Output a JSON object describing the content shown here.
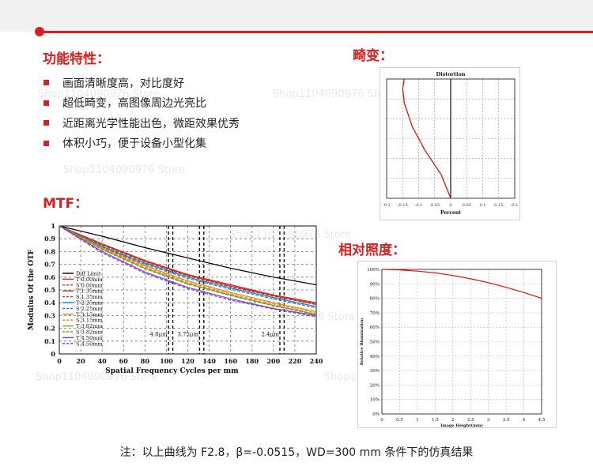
{
  "header": {
    "accent_color": "#d81e1e"
  },
  "features": {
    "title": "功能特性：",
    "items": [
      "画面清晰度高，对比度好",
      "超低畸变，高图像周边光亮比",
      "近距离光学性能出色，微距效果优秀",
      "体积小巧，便于设备小型化集"
    ]
  },
  "sections": {
    "mtf_title": "MTF：",
    "distortion_title": "畸变：",
    "illumination_title": "相对照度："
  },
  "watermark": "Shop1104090976 Store",
  "note": "注：以上曲线为 F2.8，β=-0.0515，WD=300 mm 条件下的仿真结果",
  "chart_data": [
    {
      "type": "line",
      "id": "mtf",
      "xlabel": "Spatial Frequency Cycles per mm",
      "ylabel": "Modulus Of the OTF",
      "xlim": [
        0,
        240
      ],
      "ylim": [
        0,
        1
      ],
      "x_ticks": [
        0,
        20,
        40,
        60,
        80,
        100,
        120,
        140,
        160,
        180,
        200,
        220,
        240
      ],
      "y_ticks": [
        0,
        0.1,
        0.2,
        0.3,
        0.4,
        0.5,
        0.6,
        0.7,
        0.8,
        0.9,
        1
      ],
      "legend_position": "left",
      "annotations": [
        {
          "text": "4.8μm",
          "x": 104
        },
        {
          "text": "3.75μm",
          "x": 133
        },
        {
          "text": "2.4μm",
          "x": 208
        }
      ],
      "grid": true,
      "series": [
        {
          "name": "Diff Limit",
          "color": "#000000",
          "dash": false,
          "points": [
            [
              0,
              1
            ],
            [
              40,
              0.92
            ],
            [
              80,
              0.83
            ],
            [
              120,
              0.75
            ],
            [
              160,
              0.67
            ],
            [
              200,
              0.6
            ],
            [
              240,
              0.54
            ]
          ]
        },
        {
          "name": "T 0.00mm",
          "color": "#d62728",
          "dash": false,
          "points": [
            [
              0,
              1
            ],
            [
              40,
              0.86
            ],
            [
              80,
              0.73
            ],
            [
              120,
              0.62
            ],
            [
              160,
              0.54
            ],
            [
              200,
              0.46
            ],
            [
              240,
              0.4
            ]
          ]
        },
        {
          "name": "S 0.00mm",
          "color": "#d62728",
          "dash": true,
          "points": [
            [
              0,
              1
            ],
            [
              40,
              0.86
            ],
            [
              80,
              0.73
            ],
            [
              120,
              0.62
            ],
            [
              160,
              0.54
            ],
            [
              200,
              0.46
            ],
            [
              240,
              0.4
            ]
          ]
        },
        {
          "name": "T 1.35mm",
          "color": "#c0392b",
          "dash": false,
          "points": [
            [
              0,
              1
            ],
            [
              40,
              0.855
            ],
            [
              80,
              0.725
            ],
            [
              120,
              0.615
            ],
            [
              160,
              0.53
            ],
            [
              200,
              0.455
            ],
            [
              240,
              0.39
            ]
          ]
        },
        {
          "name": "S 1.35mm",
          "color": "#c0392b",
          "dash": true,
          "points": [
            [
              0,
              1
            ],
            [
              40,
              0.85
            ],
            [
              80,
              0.72
            ],
            [
              120,
              0.61
            ],
            [
              160,
              0.525
            ],
            [
              200,
              0.45
            ],
            [
              240,
              0.385
            ]
          ]
        },
        {
          "name": "T 2.25mm",
          "color": "#1f77b4",
          "dash": false,
          "points": [
            [
              0,
              1
            ],
            [
              40,
              0.84
            ],
            [
              80,
              0.71
            ],
            [
              120,
              0.6
            ],
            [
              160,
              0.515
            ],
            [
              200,
              0.44
            ],
            [
              240,
              0.37
            ]
          ]
        },
        {
          "name": "S 2.25mm",
          "color": "#1f77b4",
          "dash": true,
          "points": [
            [
              0,
              1
            ],
            [
              40,
              0.835
            ],
            [
              80,
              0.7
            ],
            [
              120,
              0.59
            ],
            [
              160,
              0.505
            ],
            [
              200,
              0.43
            ],
            [
              240,
              0.36
            ]
          ]
        },
        {
          "name": "T 3.15mm",
          "color": "#ff7f0e",
          "dash": false,
          "points": [
            [
              0,
              1
            ],
            [
              40,
              0.83
            ],
            [
              80,
              0.69
            ],
            [
              120,
              0.57
            ],
            [
              160,
              0.48
            ],
            [
              200,
              0.4
            ],
            [
              240,
              0.33
            ]
          ]
        },
        {
          "name": "S 3.15mm",
          "color": "#ff7f0e",
          "dash": true,
          "points": [
            [
              0,
              1
            ],
            [
              40,
              0.825
            ],
            [
              80,
              0.68
            ],
            [
              120,
              0.56
            ],
            [
              160,
              0.47
            ],
            [
              200,
              0.39
            ],
            [
              240,
              0.32
            ]
          ]
        },
        {
          "name": "T 3.82mm",
          "color": "#7f9c2a",
          "dash": false,
          "points": [
            [
              0,
              1
            ],
            [
              40,
              0.82
            ],
            [
              80,
              0.67
            ],
            [
              120,
              0.55
            ],
            [
              160,
              0.46
            ],
            [
              200,
              0.38
            ],
            [
              240,
              0.31
            ]
          ]
        },
        {
          "name": "S 3.82mm",
          "color": "#7f9c2a",
          "dash": true,
          "points": [
            [
              0,
              1
            ],
            [
              40,
              0.815
            ],
            [
              80,
              0.665
            ],
            [
              120,
              0.545
            ],
            [
              160,
              0.455
            ],
            [
              200,
              0.375
            ],
            [
              240,
              0.305
            ]
          ]
        },
        {
          "name": "T 4.50mm",
          "color": "#7b3fc0",
          "dash": false,
          "points": [
            [
              0,
              1
            ],
            [
              40,
              0.8
            ],
            [
              80,
              0.64
            ],
            [
              120,
              0.52
            ],
            [
              160,
              0.43
            ],
            [
              200,
              0.355
            ],
            [
              240,
              0.3
            ]
          ]
        },
        {
          "name": "S 4.50mm",
          "color": "#7b3fc0",
          "dash": true,
          "points": [
            [
              0,
              1
            ],
            [
              40,
              0.79
            ],
            [
              80,
              0.63
            ],
            [
              120,
              0.51
            ],
            [
              160,
              0.42
            ],
            [
              200,
              0.35
            ],
            [
              240,
              0.29
            ]
          ]
        }
      ]
    },
    {
      "type": "line",
      "id": "distortion",
      "title": "Distortion",
      "xlabel": "Percent",
      "xlim": [
        -0.2,
        0.2
      ],
      "ylim": [
        0,
        1
      ],
      "x_ticks": [
        -0.2,
        -0.15,
        -0.1,
        -0.05,
        0,
        0.05,
        0.1,
        0.15,
        0.2
      ],
      "grid": true,
      "series": [
        {
          "name": "",
          "color": "#e01010",
          "points": [
            [
              0,
              0
            ],
            [
              -0.03,
              0.2
            ],
            [
              -0.08,
              0.4
            ],
            [
              -0.12,
              0.6
            ],
            [
              -0.145,
              0.8
            ],
            [
              -0.15,
              0.92
            ],
            [
              -0.145,
              1
            ]
          ]
        }
      ]
    },
    {
      "type": "line",
      "id": "relative_illumination",
      "xlabel": "Image Height(mm)",
      "ylabel": "Relative Illumination",
      "xlim": [
        0,
        4.5
      ],
      "ylim": [
        0,
        100
      ],
      "x_ticks": [
        "0",
        "0.5",
        "1",
        "1.5",
        "2",
        "2.5",
        "3",
        "3.5",
        "4",
        "4.5"
      ],
      "y_ticks": [
        "0%",
        "10%",
        "20%",
        "30%",
        "40%",
        "50%",
        "60%",
        "70%",
        "80%",
        "90%",
        "100%"
      ],
      "grid": true,
      "series": [
        {
          "name": "",
          "color": "#e01010",
          "points": [
            [
              0,
              100
            ],
            [
              0.5,
              99.6
            ],
            [
              1,
              98.8
            ],
            [
              1.5,
              97.6
            ],
            [
              2,
              95.8
            ],
            [
              2.5,
              93.5
            ],
            [
              3,
              90.8
            ],
            [
              3.5,
              87.6
            ],
            [
              4,
              84
            ],
            [
              4.5,
              80
            ]
          ]
        }
      ]
    }
  ]
}
